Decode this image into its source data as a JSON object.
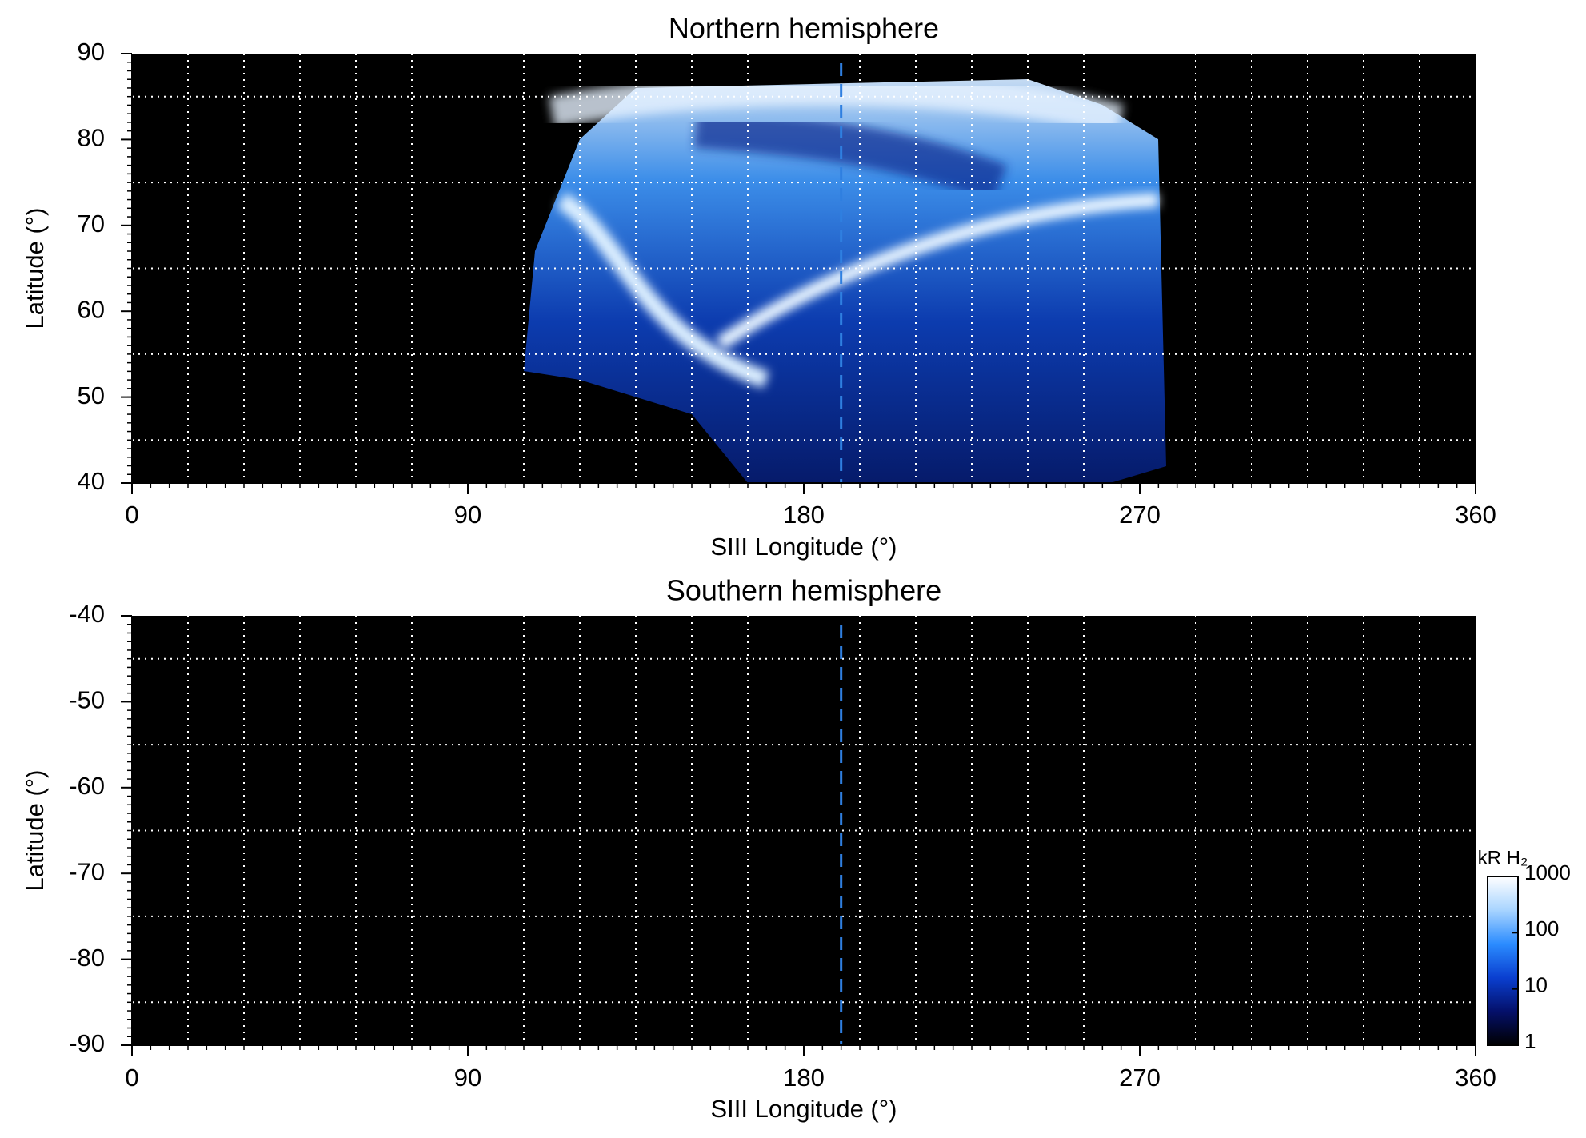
{
  "chart_data": [
    {
      "type": "heatmap",
      "title": "Northern hemisphere",
      "xlabel": "SIII Longitude (°)",
      "ylabel": "Latitude (°)",
      "xlim": [
        0,
        360
      ],
      "ylim": [
        40,
        90
      ],
      "xticks": [
        0,
        90,
        180,
        270,
        360
      ],
      "yticks": [
        40,
        50,
        60,
        70,
        80,
        90
      ],
      "xgrid": [
        15,
        30,
        45,
        60,
        75,
        105,
        120,
        135,
        150,
        165,
        195,
        210,
        225,
        240,
        255,
        285,
        300,
        315,
        330,
        345
      ],
      "ygrid": [
        45,
        55,
        65,
        75,
        85
      ],
      "grid_color": "#ffffff",
      "xminor_step": 5,
      "yminor_step": 1,
      "reference_x": 190,
      "reference_color": "#2f7fe0"
    },
    {
      "type": "heatmap",
      "title": "Southern hemisphere",
      "xlabel": "SIII Longitude (°)",
      "ylabel": "Latitude (°)",
      "xlim": [
        0,
        360
      ],
      "ylim": [
        -90,
        -40
      ],
      "xticks": [
        0,
        90,
        180,
        270,
        360
      ],
      "yticks": [
        -90,
        -80,
        -70,
        -60,
        -50,
        -40
      ],
      "xgrid": [
        15,
        30,
        45,
        60,
        75,
        105,
        120,
        135,
        150,
        165,
        195,
        210,
        225,
        240,
        255,
        285,
        300,
        315,
        330,
        345
      ],
      "ygrid": [
        -85,
        -75,
        -65,
        -55,
        -45
      ],
      "grid_color": "#ffffff",
      "xminor_step": 5,
      "yminor_step": 1,
      "reference_x": 190,
      "reference_color": "#2f7fe0",
      "colorbar": {
        "title": "kR H₂",
        "log": true,
        "clim": [
          1,
          1000
        ],
        "ticks": [
          1,
          10,
          100,
          1000
        ],
        "colors": [
          "#000000",
          "#04106a",
          "#0a3fd0",
          "#2b8cff",
          "#a8d4ff",
          "#ffffff"
        ]
      }
    }
  ]
}
